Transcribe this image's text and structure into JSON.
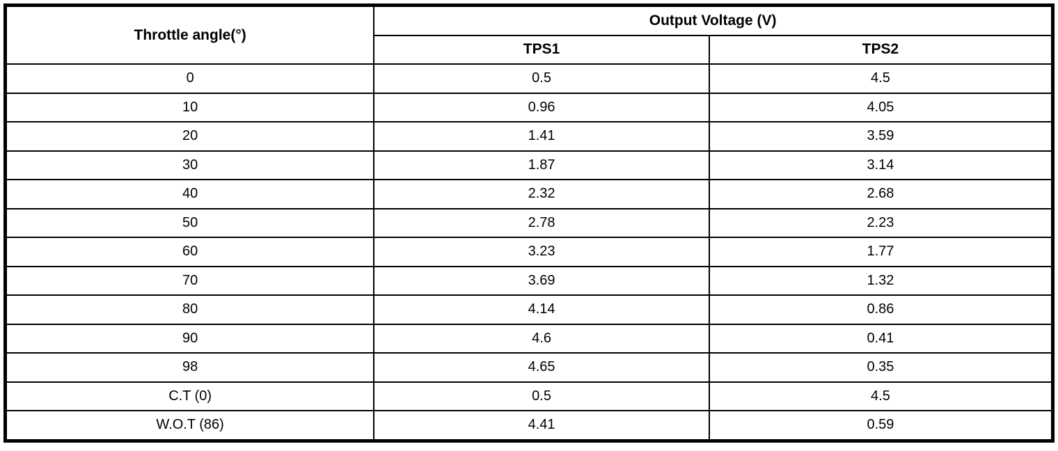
{
  "table": {
    "col1_header": "Throttle angle(°)",
    "group_header": "Output Voltage (V)",
    "sub_headers": [
      "TPS1",
      "TPS2"
    ],
    "rows": [
      {
        "angle": "0",
        "tps1": "0.5",
        "tps2": "4.5"
      },
      {
        "angle": "10",
        "tps1": "0.96",
        "tps2": "4.05"
      },
      {
        "angle": "20",
        "tps1": "1.41",
        "tps2": "3.59"
      },
      {
        "angle": "30",
        "tps1": "1.87",
        "tps2": "3.14"
      },
      {
        "angle": "40",
        "tps1": "2.32",
        "tps2": "2.68"
      },
      {
        "angle": "50",
        "tps1": "2.78",
        "tps2": "2.23"
      },
      {
        "angle": "60",
        "tps1": "3.23",
        "tps2": "1.77"
      },
      {
        "angle": "70",
        "tps1": "3.69",
        "tps2": "1.32"
      },
      {
        "angle": "80",
        "tps1": "4.14",
        "tps2": "0.86"
      },
      {
        "angle": "90",
        "tps1": "4.6",
        "tps2": "0.41"
      },
      {
        "angle": "98",
        "tps1": "4.65",
        "tps2": "0.35"
      },
      {
        "angle": "C.T (0)",
        "tps1": "0.5",
        "tps2": "4.5"
      },
      {
        "angle": "W.O.T (86)",
        "tps1": "4.41",
        "tps2": "0.59"
      }
    ]
  },
  "colors": {
    "border": "#000000",
    "background": "#ffffff",
    "text": "#000000"
  }
}
